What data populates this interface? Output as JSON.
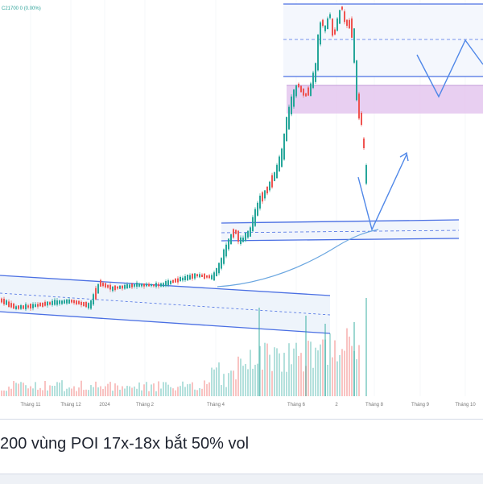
{
  "header": {
    "quote_fragment": "C21700  0 (0.00%)"
  },
  "caption": "200 vùng POI 17x-18x bắt 50% vol",
  "colors": {
    "up": "#26a69a",
    "down": "#ef5350",
    "zone_line": "#4a6fe3",
    "poi_fill": "#e4c7ee",
    "channel_fill": "#eef4fb",
    "arrow": "#4f87e8",
    "ma": "#6aa6e0"
  },
  "chart_data": {
    "type": "candlestick",
    "x_ticks": [
      "Tháng 11",
      "Tháng 12",
      "2024",
      "Tháng 2",
      "Tháng 4",
      "Tháng 6",
      "2",
      "Tháng 8",
      "Tháng 9",
      "Tháng 10"
    ],
    "annotations": [
      "descending channel",
      "POI zone",
      "projected path",
      "target range"
    ]
  }
}
